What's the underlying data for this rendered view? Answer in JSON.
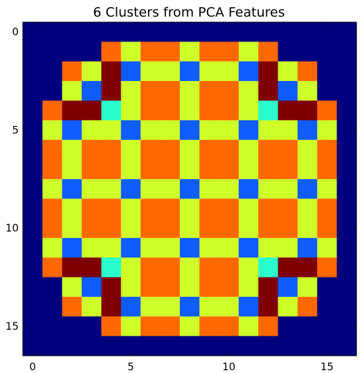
{
  "chart_data": {
    "type": "heatmap",
    "title": "6 Clusters from PCA Features",
    "xlabel": "",
    "ylabel": "",
    "xlim": [
      -0.5,
      16.5
    ],
    "ylim": [
      16.5,
      -0.5
    ],
    "x_ticks": [
      0,
      5,
      10,
      15
    ],
    "y_ticks": [
      0,
      5,
      10,
      15
    ],
    "x_tick_labels": [
      "0",
      "5",
      "10",
      "15"
    ],
    "y_tick_labels": [
      "0",
      "5",
      "10",
      "15"
    ],
    "grid": false,
    "colormap": "jet",
    "cluster_colors": {
      "0": "#00007f",
      "1": "#0f5cff",
      "2": "#29ffce",
      "3": "#ceff29",
      "4": "#ff6800",
      "5": "#7f0000"
    },
    "rows": 17,
    "cols": 17,
    "values": [
      [
        0,
        0,
        0,
        0,
        0,
        0,
        0,
        0,
        0,
        0,
        0,
        0,
        0,
        0,
        0,
        0,
        0
      ],
      [
        0,
        0,
        0,
        0,
        4,
        3,
        4,
        4,
        3,
        4,
        4,
        3,
        4,
        0,
        0,
        0,
        0
      ],
      [
        0,
        0,
        4,
        3,
        5,
        1,
        3,
        3,
        1,
        3,
        3,
        1,
        5,
        3,
        4,
        0,
        0
      ],
      [
        0,
        0,
        3,
        1,
        5,
        3,
        4,
        4,
        3,
        4,
        4,
        3,
        5,
        1,
        3,
        0,
        0
      ],
      [
        0,
        4,
        5,
        5,
        2,
        3,
        4,
        4,
        3,
        4,
        4,
        3,
        2,
        5,
        5,
        4,
        0
      ],
      [
        0,
        3,
        1,
        3,
        3,
        1,
        3,
        3,
        1,
        3,
        3,
        1,
        3,
        3,
        1,
        3,
        0
      ],
      [
        0,
        4,
        3,
        4,
        4,
        3,
        4,
        4,
        3,
        4,
        4,
        3,
        4,
        4,
        3,
        4,
        0
      ],
      [
        0,
        4,
        3,
        4,
        4,
        3,
        4,
        4,
        3,
        4,
        4,
        3,
        4,
        4,
        3,
        4,
        0
      ],
      [
        0,
        3,
        1,
        3,
        3,
        1,
        3,
        3,
        1,
        3,
        3,
        1,
        3,
        3,
        1,
        3,
        0
      ],
      [
        0,
        4,
        3,
        4,
        4,
        3,
        4,
        4,
        3,
        4,
        4,
        3,
        4,
        4,
        3,
        4,
        0
      ],
      [
        0,
        4,
        3,
        4,
        4,
        3,
        4,
        4,
        3,
        4,
        4,
        3,
        4,
        4,
        3,
        4,
        0
      ],
      [
        0,
        3,
        1,
        3,
        3,
        1,
        3,
        3,
        1,
        3,
        3,
        1,
        3,
        3,
        1,
        3,
        0
      ],
      [
        0,
        4,
        5,
        5,
        2,
        3,
        4,
        4,
        3,
        4,
        4,
        3,
        2,
        5,
        5,
        4,
        0
      ],
      [
        0,
        0,
        3,
        1,
        5,
        3,
        4,
        4,
        3,
        4,
        4,
        3,
        5,
        1,
        3,
        0,
        0
      ],
      [
        0,
        0,
        4,
        3,
        5,
        1,
        3,
        3,
        1,
        3,
        3,
        1,
        5,
        3,
        4,
        0,
        0
      ],
      [
        0,
        0,
        0,
        0,
        4,
        3,
        4,
        4,
        3,
        4,
        4,
        3,
        4,
        0,
        0,
        0,
        0
      ],
      [
        0,
        0,
        0,
        0,
        0,
        0,
        0,
        0,
        0,
        0,
        0,
        0,
        0,
        0,
        0,
        0,
        0
      ]
    ]
  }
}
